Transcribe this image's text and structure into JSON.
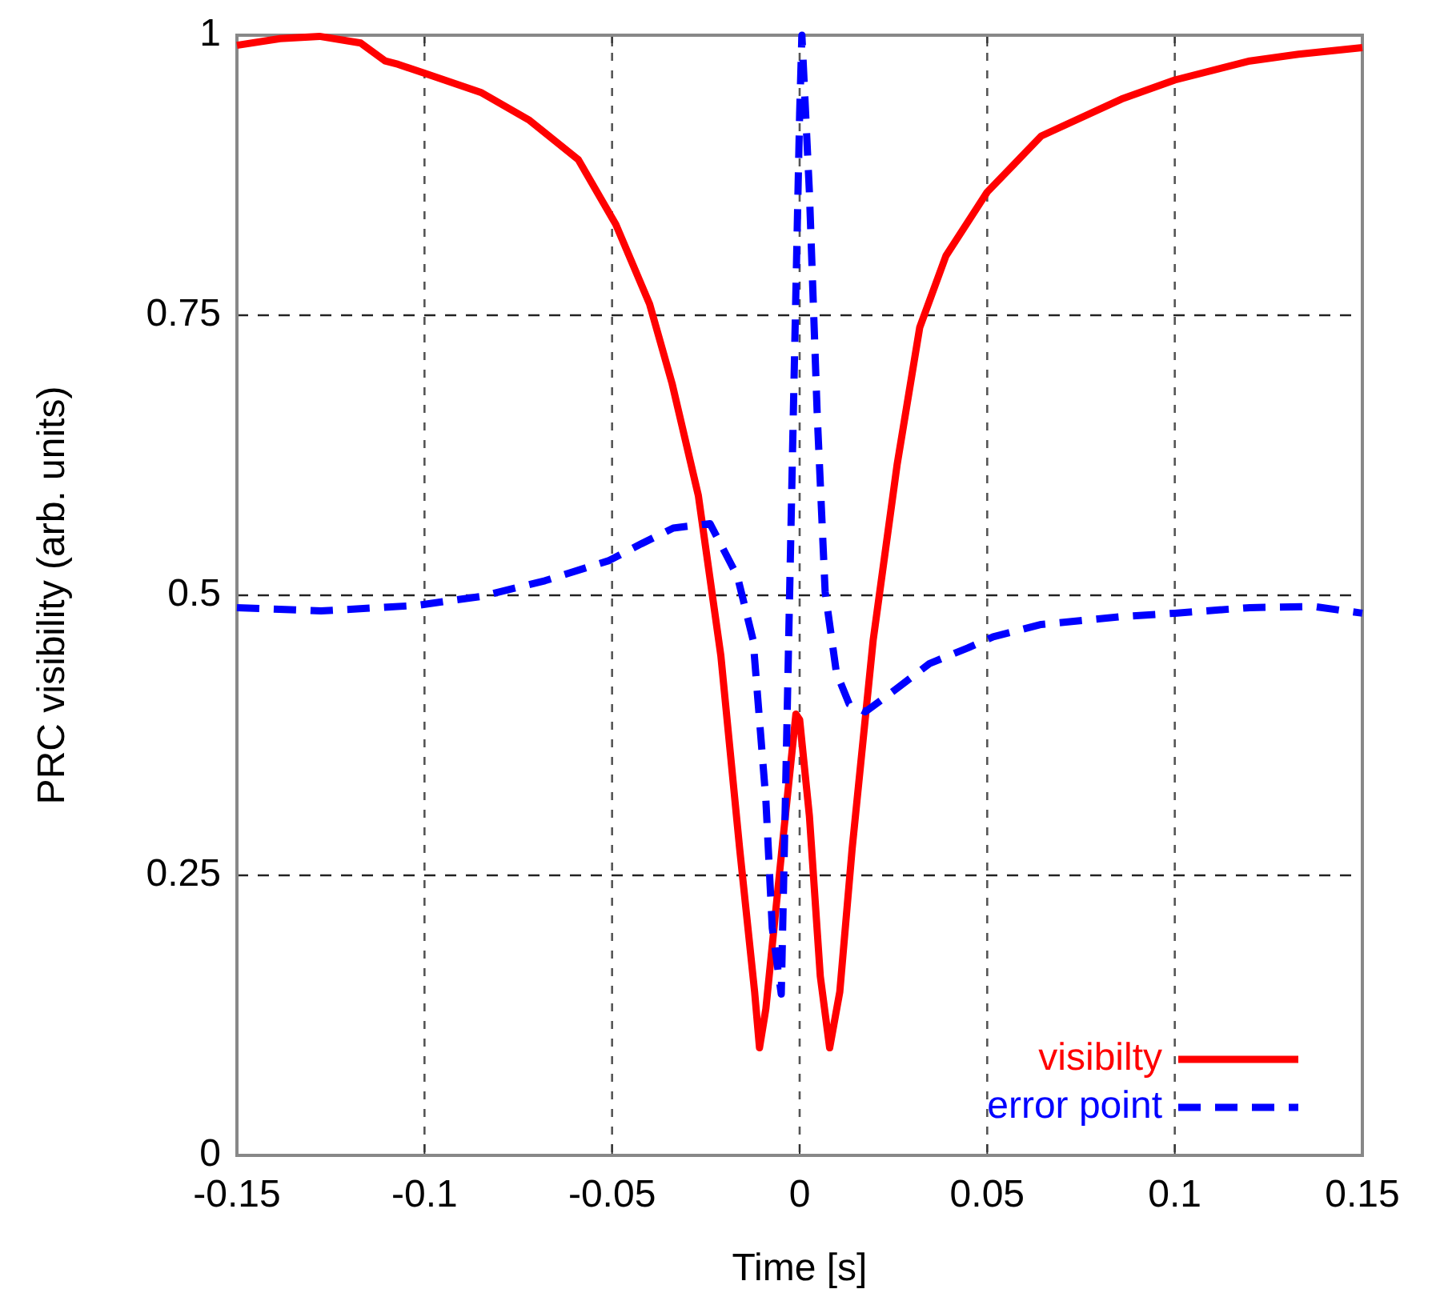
{
  "chart_data": {
    "type": "line",
    "xlabel": "Time [s]",
    "ylabel": "PRC visibility (arb. units)",
    "xlim": [
      -0.15,
      0.15
    ],
    "ylim": [
      0,
      1
    ],
    "xticks": [
      -0.15,
      -0.1,
      -0.05,
      0,
      0.05,
      0.1,
      0.15
    ],
    "yticks": [
      0,
      0.25,
      0.5,
      0.75,
      1
    ],
    "grid": true,
    "legend": "bottom right",
    "series": [
      {
        "name": "visibilty",
        "color": "#ff0000",
        "line_style": "solid",
        "x": [
          -0.15,
          -0.1385,
          -0.128,
          -0.117,
          -0.1105,
          -0.107,
          -0.1,
          -0.085,
          -0.072,
          -0.059,
          -0.049,
          -0.04,
          -0.034,
          -0.027,
          -0.021,
          -0.016,
          -0.012,
          -0.0107,
          -0.009,
          -0.0047,
          -0.001,
          0,
          0.0026,
          0.0055,
          0.008,
          0.0107,
          0.014,
          0.0196,
          0.026,
          0.032,
          0.039,
          0.05,
          0.0644,
          0.0858,
          0.1,
          0.12,
          0.133,
          0.15
        ],
        "values": [
          0.991,
          0.997,
          0.999,
          0.993,
          0.977,
          0.974,
          0.966,
          0.949,
          0.924,
          0.889,
          0.831,
          0.76,
          0.689,
          0.589,
          0.446,
          0.274,
          0.146,
          0.096,
          0.131,
          0.274,
          0.394,
          0.389,
          0.303,
          0.16,
          0.096,
          0.146,
          0.274,
          0.46,
          0.617,
          0.739,
          0.803,
          0.86,
          0.91,
          0.943,
          0.96,
          0.977,
          0.983,
          0.989
        ]
      },
      {
        "name": "error point",
        "color": "#0000ff",
        "line_style": "dashed",
        "x": [
          -0.15,
          -0.1276,
          -0.102,
          -0.0849,
          -0.0679,
          -0.0508,
          -0.0422,
          -0.0337,
          -0.0239,
          -0.0166,
          -0.0124,
          -0.009,
          -0.0073,
          -0.0049,
          -0.0038,
          -0.0017,
          0,
          0.0006,
          0.0026,
          0.0047,
          0.0068,
          0.0098,
          0.0132,
          0.0175,
          0.026,
          0.0346,
          0.0448,
          0.0516,
          0.0644,
          0.0858,
          0.1,
          0.12,
          0.137,
          0.15
        ],
        "values": [
          0.489,
          0.486,
          0.491,
          0.499,
          0.513,
          0.531,
          0.546,
          0.56,
          0.564,
          0.517,
          0.46,
          0.317,
          0.203,
          0.144,
          0.317,
          0.66,
          0.93,
          1.0,
          0.86,
          0.66,
          0.503,
          0.431,
          0.403,
          0.396,
          0.417,
          0.439,
          0.453,
          0.463,
          0.474,
          0.481,
          0.484,
          0.489,
          0.49,
          0.484
        ]
      }
    ]
  }
}
